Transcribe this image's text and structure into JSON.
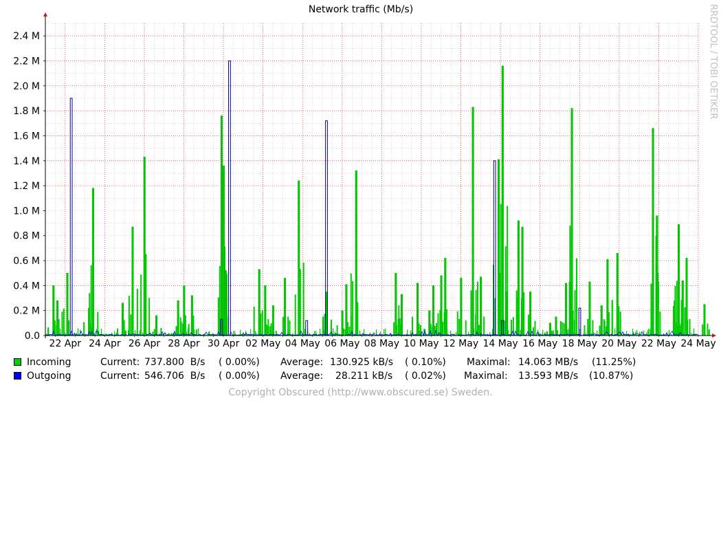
{
  "chart_data": {
    "type": "area",
    "title": "Network traffic (Mb/s)",
    "ylim": [
      0,
      2.5
    ],
    "y_ticks": [
      {
        "value": 0,
        "label": "0.0"
      },
      {
        "value": 0.2,
        "label": "0.2 M"
      },
      {
        "value": 0.4,
        "label": "0.4 M"
      },
      {
        "value": 0.6,
        "label": "0.6 M"
      },
      {
        "value": 0.8,
        "label": "0.8 M"
      },
      {
        "value": 1.0,
        "label": "1.0 M"
      },
      {
        "value": 1.2,
        "label": "1.2 M"
      },
      {
        "value": 1.4,
        "label": "1.4 M"
      },
      {
        "value": 1.6,
        "label": "1.6 M"
      },
      {
        "value": 1.8,
        "label": "1.8 M"
      },
      {
        "value": 2.0,
        "label": "2.0 M"
      },
      {
        "value": 2.2,
        "label": "2.2 M"
      },
      {
        "value": 2.4,
        "label": "2.4 M"
      }
    ],
    "x_range": [
      "2024-04-21",
      "2024-05-24"
    ],
    "x_ticks": [
      "22 Apr",
      "24 Apr",
      "26 Apr",
      "28 Apr",
      "30 Apr",
      "02 May",
      "04 May",
      "06 May",
      "08 May",
      "10 May",
      "12 May",
      "14 May",
      "16 May",
      "18 May",
      "20 May",
      "22 May",
      "24 May"
    ],
    "grid": true,
    "series": [
      {
        "name": "Incoming",
        "color": "#00cc00",
        "outline": "#009900",
        "peaks": [
          {
            "x": "2024-04-21.4",
            "y": 0.4
          },
          {
            "x": "2024-04-21.6",
            "y": 0.28
          },
          {
            "x": "2024-04-22.1",
            "y": 0.5
          },
          {
            "x": "2024-04-23.2",
            "y": 0.22
          },
          {
            "x": "2024-04-23.4",
            "y": 1.18
          },
          {
            "x": "2024-04-24.9",
            "y": 0.26
          },
          {
            "x": "2024-04-25.4",
            "y": 0.87
          },
          {
            "x": "2024-04-26.0",
            "y": 1.43
          },
          {
            "x": "2024-04-26.6",
            "y": 0.16
          },
          {
            "x": "2024-04-27.7",
            "y": 0.28
          },
          {
            "x": "2024-04-28.0",
            "y": 0.4
          },
          {
            "x": "2024-04-28.4",
            "y": 0.32
          },
          {
            "x": "2024-04-29.9",
            "y": 1.76
          },
          {
            "x": "2024-04-30.0",
            "y": 1.36
          },
          {
            "x": "2024-04-30.1",
            "y": 0.52
          },
          {
            "x": "2024-05-01.8",
            "y": 0.53
          },
          {
            "x": "2024-05-02.1",
            "y": 0.4
          },
          {
            "x": "2024-05-02.5",
            "y": 0.24
          },
          {
            "x": "2024-05-03.1",
            "y": 0.46
          },
          {
            "x": "2024-05-03.8",
            "y": 1.24
          },
          {
            "x": "2024-05-05.2",
            "y": 0.35
          },
          {
            "x": "2024-05-06.0",
            "y": 0.2
          },
          {
            "x": "2024-05-06.2",
            "y": 0.41
          },
          {
            "x": "2024-05-06.7",
            "y": 1.32
          },
          {
            "x": "2024-05-08.7",
            "y": 0.5
          },
          {
            "x": "2024-05-09.0",
            "y": 0.33
          },
          {
            "x": "2024-05-09.8",
            "y": 0.42
          },
          {
            "x": "2024-05-10.4",
            "y": 0.2
          },
          {
            "x": "2024-05-10.6",
            "y": 0.4
          },
          {
            "x": "2024-05-11.0",
            "y": 0.48
          },
          {
            "x": "2024-05-11.2",
            "y": 0.62
          },
          {
            "x": "2024-05-12.0",
            "y": 0.46
          },
          {
            "x": "2024-05-12.6",
            "y": 1.83
          },
          {
            "x": "2024-05-13.0",
            "y": 0.47
          },
          {
            "x": "2024-05-13.9",
            "y": 1.41
          },
          {
            "x": "2024-05-14.1",
            "y": 2.16
          },
          {
            "x": "2024-05-14.3",
            "y": 0.35
          },
          {
            "x": "2024-05-14.9",
            "y": 0.92
          },
          {
            "x": "2024-05-15.1",
            "y": 0.87
          },
          {
            "x": "2024-05-15.5",
            "y": 0.35
          },
          {
            "x": "2024-05-16.5",
            "y": 0.1
          },
          {
            "x": "2024-05-16.8",
            "y": 0.15
          },
          {
            "x": "2024-05-17.3",
            "y": 0.42
          },
          {
            "x": "2024-05-17.5",
            "y": 0.43
          },
          {
            "x": "2024-05-17.6",
            "y": 1.82
          },
          {
            "x": "2024-05-18.5",
            "y": 0.43
          },
          {
            "x": "2024-05-19.1",
            "y": 0.24
          },
          {
            "x": "2024-05-19.4",
            "y": 0.61
          },
          {
            "x": "2024-05-19.9",
            "y": 0.66
          },
          {
            "x": "2024-05-21.7",
            "y": 1.66
          },
          {
            "x": "2024-05-21.9",
            "y": 0.96
          },
          {
            "x": "2024-05-22.8",
            "y": 0.28
          },
          {
            "x": "2024-05-23.0",
            "y": 0.89
          },
          {
            "x": "2024-05-23.2",
            "y": 0.44
          },
          {
            "x": "2024-05-23.4",
            "y": 0.62
          },
          {
            "x": "2024-05-24.3",
            "y": 0.25
          }
        ]
      },
      {
        "name": "Outgoing",
        "color": "#0000ff",
        "outline": "#000099",
        "peaks": [
          {
            "x": "2024-04-22.3",
            "y": 1.9
          },
          {
            "x": "2024-04-30.3",
            "y": 2.2
          },
          {
            "x": "2024-05-05.2",
            "y": 1.72
          },
          {
            "x": "2024-05-13.7",
            "y": 1.4
          },
          {
            "x": "2024-05-04.2",
            "y": 0.12
          },
          {
            "x": "2024-05-18.0",
            "y": 0.22
          },
          {
            "x": "2024-05-14.1",
            "y": 0.12
          },
          {
            "x": "2024-04-29.9",
            "y": 0.13
          }
        ]
      }
    ]
  },
  "legend": {
    "incoming": {
      "label": "Incoming",
      "current_label": "Current:",
      "current_value": "737.800  B/s",
      "current_pct": "( 0.00%)",
      "average_label": "Average:",
      "average_value": "130.925 kB/s",
      "average_pct": "( 0.10%)",
      "maximal_label": "Maximal:",
      "maximal_value": "14.063 MB/s",
      "maximal_pct": "(11.25%)",
      "color": "#00cc00"
    },
    "outgoing": {
      "label": "Outgoing",
      "current_label": "Current:",
      "current_value": "546.706  B/s",
      "current_pct": "( 0.00%)",
      "average_label": "Average:",
      "average_value": "28.211 kB/s",
      "average_pct": "( 0.02%)",
      "maximal_label": "Maximal:",
      "maximal_value": "13.593 MB/s",
      "maximal_pct": "(10.87%)",
      "color": "#0000ff"
    }
  },
  "watermark": "RRDTOOL / TOBI OETIKER",
  "copyright": "Copyright Obscured (http://www.obscured.se) Sweden."
}
